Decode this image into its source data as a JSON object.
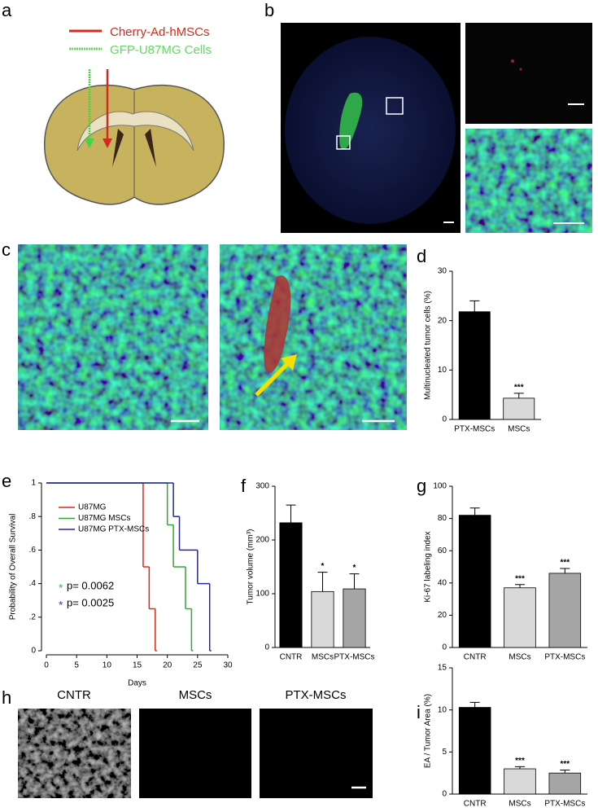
{
  "panel_labels": [
    "a",
    "b",
    "c",
    "d",
    "e",
    "f",
    "g",
    "h",
    "i"
  ],
  "schematic": {
    "labels": [
      "Cherry-Ad-hMSCs",
      "GFP-U87MG Cells"
    ]
  },
  "panel_h": {
    "columns": [
      "CNTR",
      "MSCs",
      "PTX-MSCs"
    ]
  },
  "chart_data": [
    {
      "type": "bar",
      "y_label": "Multinucleated tumor cells (%)",
      "categories": [
        "PTX-MSCs",
        "MSCs"
      ],
      "values": [
        21.8,
        4.3
      ],
      "errors": [
        2.2,
        1.0
      ],
      "significance": [
        null,
        "***"
      ],
      "colors": [
        "#000000",
        "#d9d9d9"
      ],
      "ylim": [
        0,
        30
      ],
      "yticks": [
        0,
        10,
        20,
        30
      ]
    },
    {
      "type": "step",
      "y_label": "Probability of Overall Survival",
      "x_label": "Days",
      "xlim": [
        0,
        30
      ],
      "xticks": [
        0,
        5,
        10,
        15,
        20,
        25,
        30
      ],
      "ylim": [
        0,
        1
      ],
      "yticks": [
        0,
        {
          "value": 0.2,
          "label": ".2"
        },
        {
          "value": 0.4,
          "label": ".4"
        },
        {
          "value": 0.6,
          "label": ".6"
        },
        {
          "value": 0.8,
          "label": ".8"
        },
        1
      ],
      "series": [
        {
          "name": "U87MG",
          "color": "#d42a1e",
          "x": [
            0,
            16,
            17,
            18
          ],
          "values": [
            1,
            0.5,
            0.25,
            0
          ]
        },
        {
          "name": "U87MG MSCs",
          "color": "#2fa82f",
          "x": [
            0,
            20,
            21,
            23,
            24
          ],
          "values": [
            1,
            0.75,
            0.5,
            0.25,
            0
          ]
        },
        {
          "name": "U87MG PTX-MSCs",
          "color": "#26269a",
          "x": [
            0,
            21,
            22,
            25,
            27
          ],
          "values": [
            1,
            0.8,
            0.6,
            0.4,
            0
          ]
        }
      ],
      "annotations": [
        {
          "marker": "*",
          "text": "p= 0.0062",
          "color": "#3cb83c"
        },
        {
          "marker": "*",
          "text": "p= 0.0025",
          "color": "#3a3ab0"
        }
      ]
    },
    {
      "type": "bar",
      "y_label": "Tumor volume (mm³)",
      "categories": [
        "CNTR",
        "MSCs",
        "PTX-MSCs"
      ],
      "values": [
        232,
        104,
        109
      ],
      "errors": [
        33,
        36,
        28
      ],
      "significance": [
        null,
        "*",
        "*"
      ],
      "colors": [
        "#000000",
        "#d9d9d9",
        "#a6a6a6"
      ],
      "ylim": [
        0,
        300
      ],
      "yticks": [
        0,
        100,
        200,
        300
      ]
    },
    {
      "type": "bar",
      "y_label": "Ki-67 labeling index",
      "categories": [
        "CNTR",
        "MSCs",
        "PTX-MSCs"
      ],
      "values": [
        82,
        37,
        46
      ],
      "errors": [
        4.5,
        2,
        3
      ],
      "significance": [
        null,
        "***",
        "***"
      ],
      "colors": [
        "#000000",
        "#d9d9d9",
        "#a6a6a6"
      ],
      "ylim": [
        0,
        100
      ],
      "yticks": [
        0,
        20,
        40,
        60,
        80,
        100
      ]
    },
    {
      "type": "bar",
      "y_label": "EA / Tumor Area (%)",
      "categories": [
        "CNTR",
        "MSCs",
        "PTX-MSCs"
      ],
      "values": [
        10.3,
        3.0,
        2.5
      ],
      "errors": [
        0.6,
        0.25,
        0.35
      ],
      "significance": [
        null,
        "***",
        "***"
      ],
      "colors": [
        "#000000",
        "#d9d9d9",
        "#a6a6a6"
      ],
      "ylim": [
        0,
        15
      ],
      "yticks": [
        0,
        5,
        10,
        15
      ]
    }
  ]
}
